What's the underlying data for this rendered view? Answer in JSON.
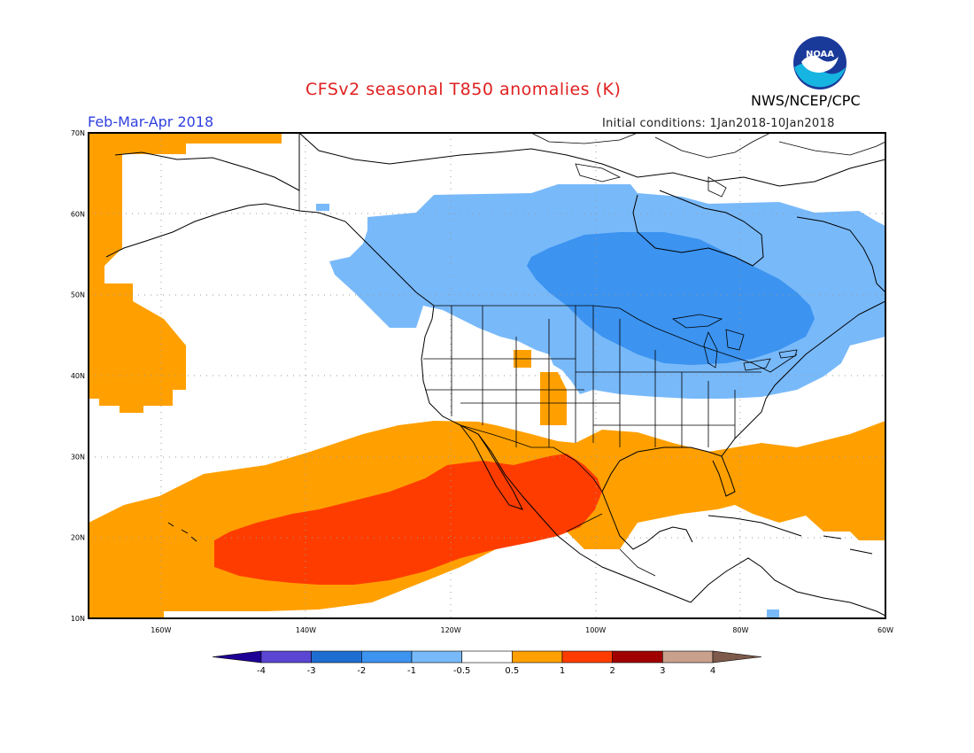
{
  "header": {
    "title": "CFSv2 seasonal T850 anomalies (K)",
    "season": "Feb-Mar-Apr 2018",
    "initial_conditions": "Initial conditions: 1Jan2018-10Jan2018",
    "organization": "NWS/NCEP/CPC",
    "logo_text": "NOAA"
  },
  "map": {
    "lon_range": [
      -170,
      -60
    ],
    "lat_range": [
      10,
      70
    ],
    "lat_ticks": [
      {
        "value": 70,
        "label": "70N"
      },
      {
        "value": 60,
        "label": "60N"
      },
      {
        "value": 50,
        "label": "50N"
      },
      {
        "value": 40,
        "label": "40N"
      },
      {
        "value": 30,
        "label": "30N"
      },
      {
        "value": 20,
        "label": "20N"
      },
      {
        "value": 10,
        "label": "10N"
      }
    ],
    "lon_ticks": [
      {
        "value": -160,
        "label": "160W"
      },
      {
        "value": -140,
        "label": "140W"
      },
      {
        "value": -120,
        "label": "120W"
      },
      {
        "value": -100,
        "label": "100W"
      },
      {
        "value": -80,
        "label": "80W"
      },
      {
        "value": -60,
        "label": "60W"
      }
    ],
    "colors": {
      "pos_0_5_1": "#ffa000",
      "pos_1_2": "#ff3c00",
      "neg_0_5_1": "#78b9fa",
      "neg_1_2": "#3c93f0",
      "land": "#000000",
      "grid": "#999999"
    }
  },
  "colorbar": {
    "levels": [
      "-4",
      "-3",
      "-2",
      "-1",
      "-0.5",
      "0.5",
      "1",
      "2",
      "3",
      "4"
    ],
    "colors": [
      "#1e0096",
      "#5a46d2",
      "#1e6ed2",
      "#3c93f0",
      "#78b9fa",
      "#ffffff",
      "#ffa000",
      "#ff3c00",
      "#a00000",
      "#c8a08c",
      "#7d5a4b"
    ]
  }
}
